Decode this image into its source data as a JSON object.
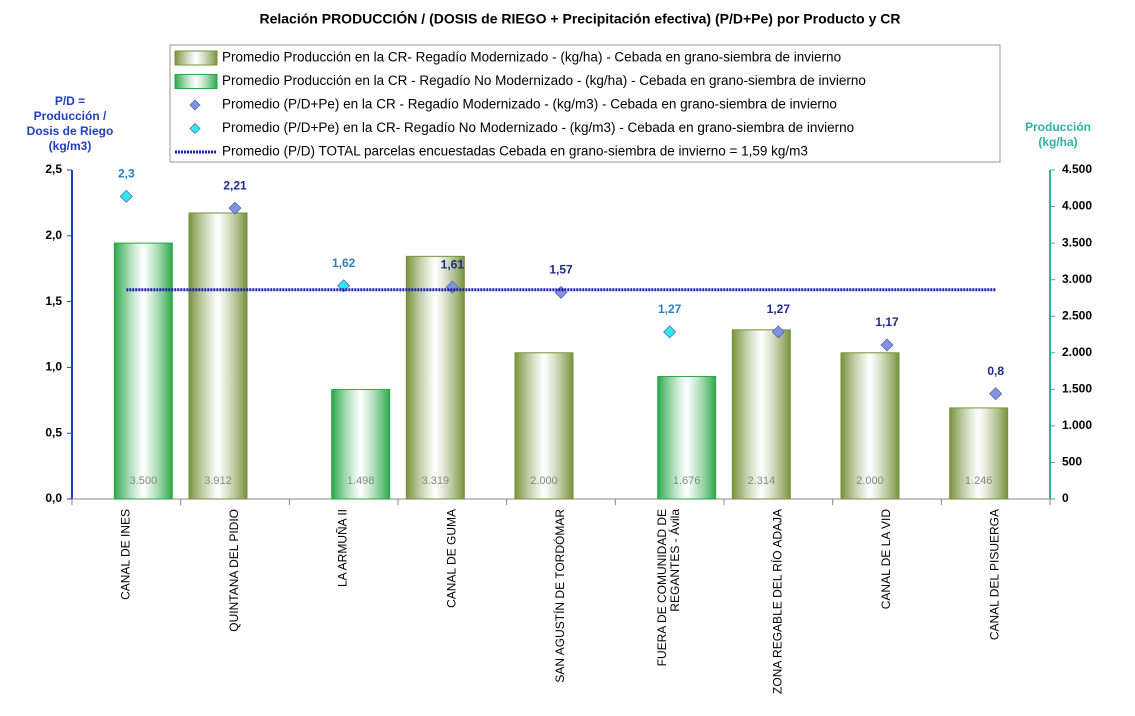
{
  "chart_data": {
    "type": "bar",
    "title": "Relación PRODUCCIÓN / (DOSIS de RIEGO + Precipitación efectiva)  (P/D+Pe) por Producto y CR",
    "ylabel": [
      "P/D =",
      "Producción /",
      "Dosis  de Riego",
      "(kg/m3)"
    ],
    "y2label": [
      "Producción",
      "(kg/ha)"
    ],
    "categories": [
      "CANAL DE INES",
      "QUINTANA DEL PIDIO",
      "LA ARMUÑA II",
      "CANAL DE GUMA",
      "SAN AGUSTÍN DE TORDÓMAR",
      "FUERA DE COMUNIDAD DE REGANTES - Ávila",
      "ZONA REGABLE DEL RÍO ADAJA",
      "CANAL DE LA VID",
      "CANAL DEL PISUERGA"
    ],
    "ylim": [
      0,
      2.5
    ],
    "yticks": [
      {
        "value": 0,
        "label": "0,0"
      },
      {
        "value": 0.5,
        "label": "0,5"
      },
      {
        "value": 1,
        "label": "1,0"
      },
      {
        "value": 1.5,
        "label": "1,5"
      },
      {
        "value": 2,
        "label": "2,0"
      },
      {
        "value": 2.5,
        "label": "2,5"
      }
    ],
    "y2lim": [
      0,
      4500
    ],
    "y2ticks": [
      0,
      500,
      {
        "value": 1000,
        "label": "1.000"
      },
      {
        "value": 1500,
        "label": "1.500"
      },
      {
        "value": 2000,
        "label": "2.000"
      },
      {
        "value": 2500,
        "label": "2.500"
      },
      {
        "value": 3000,
        "label": "3.000"
      },
      {
        "value": 3500,
        "label": "3.500"
      },
      {
        "value": 4000,
        "label": "4.000"
      },
      {
        "value": 4500,
        "label": "4.500"
      }
    ],
    "series": [
      {
        "name": "Promedio Producción en la CR- Regadío Modernizado -  (kg/ha) - Cebada en grano-siembra de invierno",
        "type": "bar",
        "axis": "y2",
        "color": "#76923c",
        "values": [
          null,
          3912,
          null,
          3319,
          2000,
          null,
          2314,
          2000,
          1246
        ],
        "value_labels": [
          null,
          "3.912",
          null,
          "3.319",
          "2.000",
          null,
          "2.314",
          "2.000",
          "1.246"
        ]
      },
      {
        "name": "Promedio Producción en la CR - Regadío No Modernizado -  (kg/ha) - Cebada en grano-siembra de invierno",
        "type": "bar",
        "axis": "y2",
        "color": "#2aa848",
        "values": [
          3500,
          null,
          1498,
          null,
          null,
          1676,
          null,
          null,
          null
        ],
        "value_labels": [
          "3.500",
          null,
          "1.498",
          null,
          null,
          "1.676",
          null,
          null,
          null
        ]
      },
      {
        "name": "Promedio (P/D+Pe) en la CR - Regadío Modernizado - (kg/m3) - Cebada en grano-siembra de invierno",
        "type": "scatter",
        "color": "#7f93e0",
        "values": [
          null,
          2.21,
          null,
          1.61,
          1.57,
          null,
          1.27,
          1.17,
          0.8
        ],
        "value_labels": [
          null,
          "2,21",
          null,
          "1,61",
          "1,57",
          null,
          "1,27",
          "1,17",
          "0,8"
        ]
      },
      {
        "name": "Promedio (P/D+Pe) en la CR- Regadío No Modernizado - (kg/m3) - Cebada en grano-siembra de invierno",
        "type": "scatter",
        "color": "#33e6f0",
        "values": [
          2.3,
          null,
          1.62,
          null,
          null,
          1.27,
          null,
          null,
          null
        ],
        "value_labels": [
          "2,3",
          null,
          "1,62",
          null,
          null,
          "1,27",
          null,
          null,
          null
        ]
      },
      {
        "name": "Promedio (P/D) TOTAL parcelas encuestadas Cebada en grano-siembra de invierno = 1,59 kg/m3",
        "type": "line",
        "color": "#1f1fa8",
        "values": [
          1.59,
          1.59,
          1.59,
          1.59,
          1.59,
          1.59,
          1.59,
          1.59,
          1.59
        ]
      }
    ]
  }
}
